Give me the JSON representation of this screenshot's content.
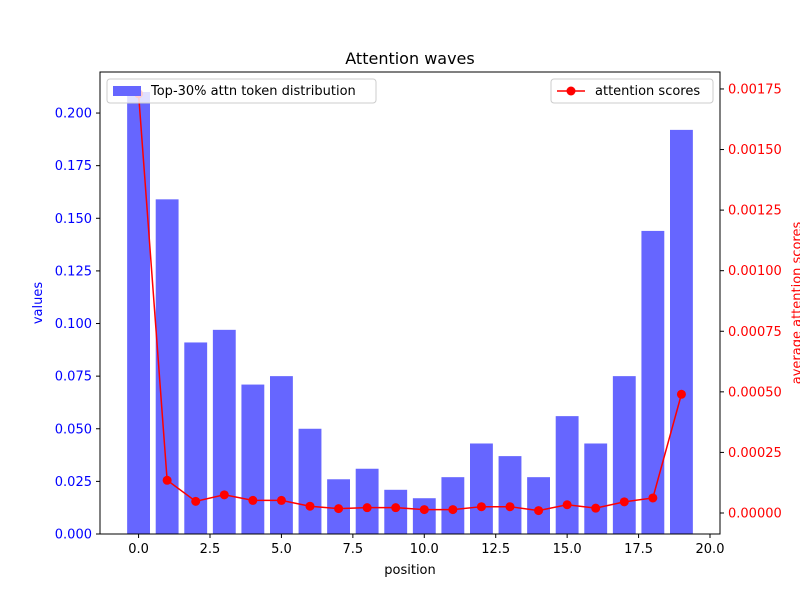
{
  "chart_data": {
    "type": "bar+line",
    "title": "Attention waves",
    "xlabel": "position",
    "ylabel_left": "values",
    "ylabel_right": "average attention scores",
    "x": [
      0,
      1,
      2,
      3,
      4,
      5,
      6,
      7,
      8,
      9,
      10,
      11,
      12,
      13,
      14,
      15,
      16,
      17,
      18,
      19
    ],
    "xlim": [
      -1.35,
      20.35
    ],
    "xticks": [
      0.0,
      2.5,
      5.0,
      7.5,
      10.0,
      12.5,
      15.0,
      17.5,
      20.0
    ],
    "xtick_labels": [
      "0.0",
      "2.5",
      "5.0",
      "7.5",
      "10.0",
      "12.5",
      "15.0",
      "17.5",
      "20.0"
    ],
    "ylim_left": [
      0,
      0.2195
    ],
    "yticks_left": [
      0.0,
      0.025,
      0.05,
      0.075,
      0.1,
      0.125,
      0.15,
      0.175,
      0.2
    ],
    "ytick_labels_left": [
      "0.000",
      "0.025",
      "0.050",
      "0.075",
      "0.100",
      "0.125",
      "0.150",
      "0.175",
      "0.200"
    ],
    "ylim_right": [
      -8.67e-05,
      0.00182
    ],
    "yticks_right": [
      0.0,
      0.00025,
      0.0005,
      0.00075,
      0.001,
      0.00125,
      0.0015,
      0.00175
    ],
    "ytick_labels_right": [
      "0.00000",
      "0.00025",
      "0.00050",
      "0.00075",
      "0.00100",
      "0.00125",
      "0.00150",
      "0.00175"
    ],
    "series": [
      {
        "name": "Top-30% attn token distribution",
        "kind": "bar",
        "axis": "left",
        "color": "#6666ff",
        "values": [
          0.21,
          0.159,
          0.091,
          0.097,
          0.071,
          0.075,
          0.05,
          0.026,
          0.031,
          0.021,
          0.017,
          0.027,
          0.043,
          0.037,
          0.027,
          0.056,
          0.043,
          0.075,
          0.144,
          0.192
        ]
      },
      {
        "name": "attention scores",
        "kind": "line",
        "axis": "right",
        "color": "#ff0000",
        "values": [
          0.00173,
          0.000135,
          4.8e-05,
          7.5e-05,
          5.2e-05,
          5.2e-05,
          2.8e-05,
          1.8e-05,
          2.2e-05,
          2.2e-05,
          1.4e-05,
          1.4e-05,
          2.6e-05,
          2.6e-05,
          1e-05,
          3.4e-05,
          2e-05,
          4.6e-05,
          6.2e-05,
          0.00049
        ]
      }
    ],
    "legend": {
      "left_position": "top-left",
      "right_position": "top-right"
    },
    "colors": {
      "left_axis": "#0000ff",
      "right_axis": "#ff0000",
      "frame": "#000000"
    }
  }
}
